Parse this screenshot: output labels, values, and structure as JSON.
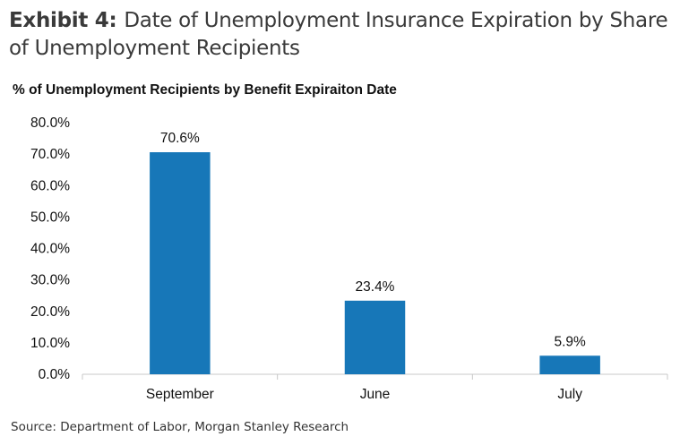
{
  "header": {
    "prefix": "Exhibit 4:",
    "title": "Date of Unemployment Insurance Expiration by Share of Unemployment Recipients"
  },
  "footer": {
    "source": "Source: Department of Labor, Morgan Stanley Research"
  },
  "chart_data": {
    "type": "bar",
    "title": "% of Unemployment Recipients by Benefit Expiraiton Date",
    "xlabel": "",
    "ylabel": "",
    "categories": [
      "September",
      "June",
      "July"
    ],
    "values": [
      70.6,
      23.4,
      5.9
    ],
    "data_labels": [
      "70.6%",
      "23.4%",
      "5.9%"
    ],
    "ylim": [
      0,
      80
    ],
    "y_ticks": [
      0,
      10,
      20,
      30,
      40,
      50,
      60,
      70,
      80
    ],
    "y_tick_labels": [
      "0.0%",
      "10.0%",
      "20.0%",
      "30.0%",
      "40.0%",
      "50.0%",
      "60.0%",
      "70.0%",
      "80.0%"
    ],
    "bar_color": "#1777b8",
    "grid": false,
    "legend": "none"
  }
}
